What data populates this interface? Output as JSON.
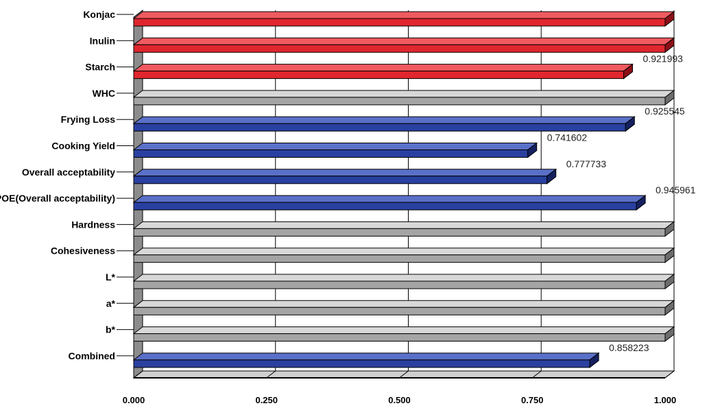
{
  "chart_data": {
    "type": "bar",
    "orientation": "horizontal",
    "title": "",
    "xlabel": "",
    "ylabel": "",
    "xlim": [
      0,
      1
    ],
    "x_ticks": [
      "0.000",
      "0.250",
      "0.500",
      "0.750",
      "1.000"
    ],
    "grid": "vertical",
    "legend": "none",
    "colors": {
      "red": "#e0262e",
      "blue": "#2940a0",
      "gray": "#a4a4a4"
    },
    "bars": [
      {
        "label": "Konjac",
        "value": 1.0,
        "color": "red",
        "value_label": ""
      },
      {
        "label": "Inulin",
        "value": 1.0,
        "color": "red",
        "value_label": ""
      },
      {
        "label": "Starch",
        "value": 0.921993,
        "color": "red",
        "value_label": "0.921993"
      },
      {
        "label": "WHC",
        "value": 1.0,
        "color": "gray",
        "value_label": ""
      },
      {
        "label": "Frying Loss",
        "value": 0.925545,
        "color": "blue",
        "value_label": "0.925545"
      },
      {
        "label": "Cooking Yield",
        "value": 0.741602,
        "color": "blue",
        "value_label": "0.741602"
      },
      {
        "label": "Overall acceptability",
        "value": 0.777733,
        "color": "blue",
        "value_label": "0.777733"
      },
      {
        "label": "POE(Overall acceptability)",
        "value": 0.945961,
        "color": "blue",
        "value_label": "0.945961"
      },
      {
        "label": "Hardness",
        "value": 1.0,
        "color": "gray",
        "value_label": ""
      },
      {
        "label": "Cohesiveness",
        "value": 1.0,
        "color": "gray",
        "value_label": ""
      },
      {
        "label": "L*",
        "value": 1.0,
        "color": "gray",
        "value_label": ""
      },
      {
        "label": "a*",
        "value": 1.0,
        "color": "gray",
        "value_label": ""
      },
      {
        "label": "b*",
        "value": 1.0,
        "color": "gray",
        "value_label": ""
      },
      {
        "label": "Combined",
        "value": 0.858223,
        "color": "blue",
        "value_label": "0.858223"
      }
    ]
  }
}
